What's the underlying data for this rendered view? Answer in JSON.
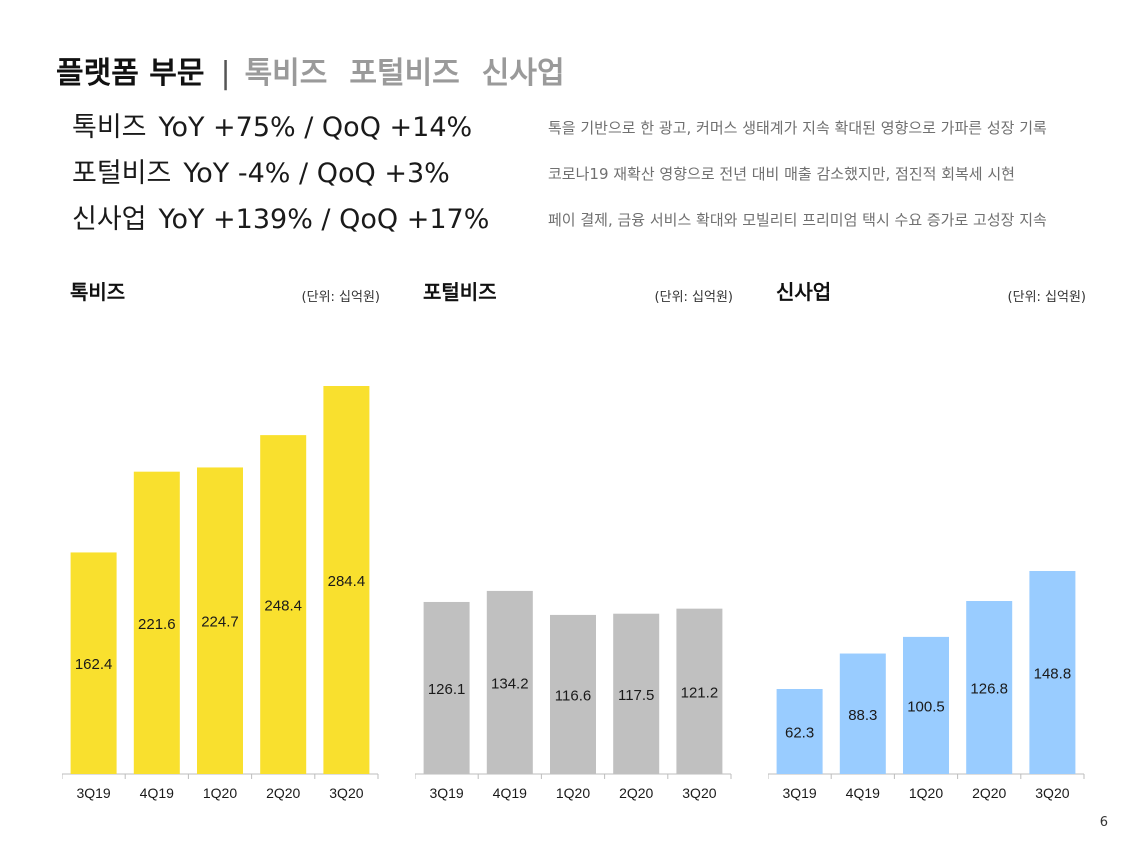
{
  "header": {
    "title": "플랫폼 부문",
    "separator": "|",
    "tabs": [
      "톡비즈",
      "포털비즈",
      "신사업"
    ]
  },
  "summary": [
    {
      "name": "톡비즈",
      "growth": "YoY +75% / QoQ +14%",
      "note": "톡을 기반으로 한 광고, 커머스 생태계가 지속 확대된 영향으로 가파른 성장 기록"
    },
    {
      "name": "포털비즈",
      "growth": "YoY -4% / QoQ +3%",
      "note": "코로나19 재확산 영향으로 전년 대비 매출 감소했지만, 점진적 회복세 시현"
    },
    {
      "name": "신사업",
      "growth": "YoY +139% / QoQ +17%",
      "note": "페이 결제, 금융 서비스 확대와 모빌리티 프리미엄 택시 수요 증가로 고성장 지속"
    }
  ],
  "chart_data": [
    {
      "type": "bar",
      "title": "톡비즈",
      "unit": "(단위: 십억원)",
      "categories": [
        "3Q19",
        "4Q19",
        "1Q20",
        "2Q20",
        "3Q20"
      ],
      "values": [
        162.4,
        221.6,
        224.7,
        248.4,
        284.4
      ],
      "color": "#F9E02E",
      "ylim": [
        0,
        284.4
      ]
    },
    {
      "type": "bar",
      "title": "포털비즈",
      "unit": "(단위: 십억원)",
      "categories": [
        "3Q19",
        "4Q19",
        "1Q20",
        "2Q20",
        "3Q20"
      ],
      "values": [
        126.1,
        134.2,
        116.6,
        117.5,
        121.2
      ],
      "color": "#C0C0C0",
      "ylim": [
        0,
        284.4
      ]
    },
    {
      "type": "bar",
      "title": "신사업",
      "unit": "(단위: 십억원)",
      "categories": [
        "3Q19",
        "4Q19",
        "1Q20",
        "2Q20",
        "3Q20"
      ],
      "values": [
        62.3,
        88.3,
        100.5,
        126.8,
        148.8
      ],
      "color": "#99CCFF",
      "ylim": [
        0,
        284.4
      ]
    }
  ],
  "page_number": "6"
}
